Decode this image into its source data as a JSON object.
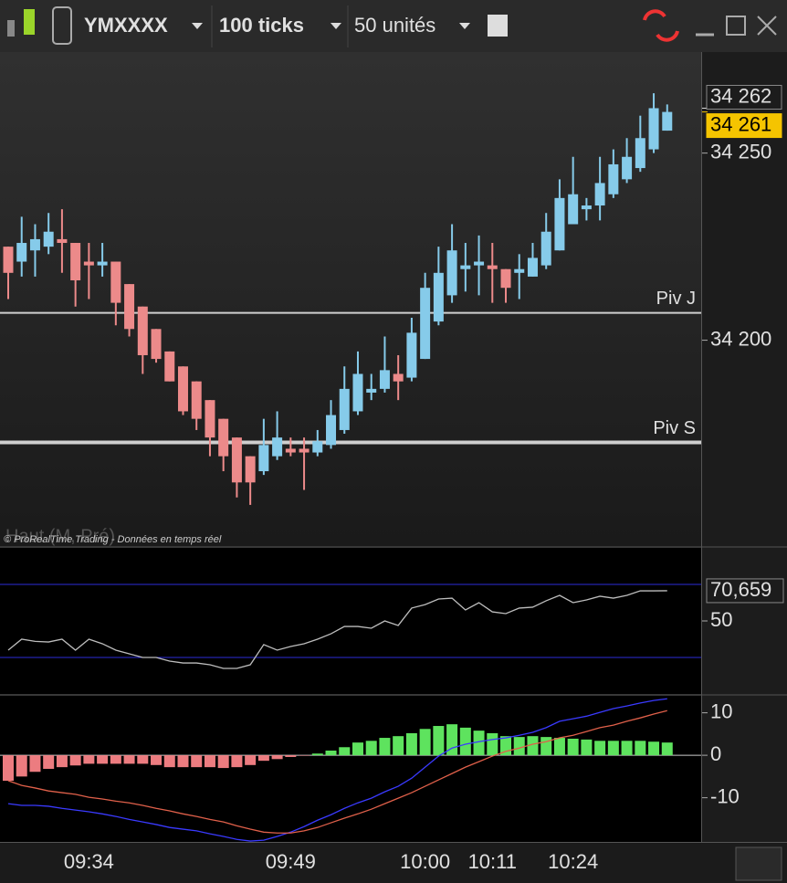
{
  "toolbar": {
    "symbol": "YMXXXX",
    "interval": "100 ticks",
    "units": "50 unités"
  },
  "chart_data": [
    {
      "type": "candlestick",
      "watermark": "© ProRealTime Trading - Données en temps réel",
      "indicator_label": "Haut (M, Pré)",
      "categories": [
        null,
        null,
        null,
        null,
        null,
        null,
        "09:34",
        null,
        null,
        null,
        null,
        null,
        null,
        null,
        null,
        null,
        null,
        null,
        null,
        null,
        null,
        "09:49",
        null,
        null,
        null,
        null,
        null,
        null,
        null,
        null,
        null,
        "10:00",
        null,
        null,
        null,
        null,
        "10:11",
        null,
        null,
        null,
        null,
        null,
        "10:24",
        null,
        null,
        null,
        null,
        null,
        null,
        null
      ],
      "open": [
        34225,
        34221,
        34224,
        34225,
        34227,
        34226,
        34221,
        34220,
        34221,
        34215,
        34209,
        34203,
        34197,
        34193,
        34189,
        34184,
        34179,
        34174,
        34169,
        34165,
        34169,
        34171,
        34171,
        34170,
        34172,
        34176,
        34181,
        34186,
        34187,
        34191,
        34190,
        34195,
        34205,
        34212,
        34219,
        34220,
        34220,
        34219,
        34218,
        34217,
        34220,
        34224,
        34231,
        34235,
        34236,
        34239,
        34243,
        34246,
        34251,
        34256
      ],
      "high": [
        34225,
        34233,
        34231,
        34234,
        34235,
        34226,
        34226,
        34226,
        34221,
        34215,
        34209,
        34203,
        34197,
        34193,
        34189,
        34184,
        34179,
        34174,
        34169,
        34179,
        34181,
        34174,
        34174,
        34176,
        34184,
        34193,
        34197,
        34191,
        34201,
        34196,
        34206,
        34218,
        34225,
        34231,
        34226,
        34228,
        34226,
        34219,
        34223,
        34226,
        34234,
        34243,
        34249,
        34238,
        34249,
        34251,
        34254,
        34260,
        34266,
        34263
      ],
      "low": [
        34211,
        34217,
        34217,
        34223,
        34218,
        34209,
        34211,
        34217,
        34204,
        34201,
        34191,
        34194,
        34189,
        34180,
        34176,
        34169,
        34165,
        34158,
        34156,
        34164,
        34168,
        34169,
        34160,
        34169,
        34171,
        34175,
        34180,
        34184,
        34186,
        34184,
        34189,
        34195,
        34204,
        34210,
        34213,
        34212,
        34210,
        34210,
        34211,
        34217,
        34219,
        34224,
        34231,
        34232,
        34232,
        34238,
        34242,
        34245,
        34250,
        34256
      ],
      "close": [
        34218,
        34226,
        34227,
        34229,
        34226,
        34216,
        34220,
        34221,
        34210,
        34203,
        34196,
        34195,
        34189,
        34181,
        34179,
        34174,
        34169,
        34162,
        34162,
        34172,
        34174,
        34170,
        34170,
        34173,
        34180,
        34187,
        34191,
        34187,
        34192,
        34189,
        34202,
        34214,
        34218,
        34224,
        34220,
        34221,
        34219,
        34214,
        34219,
        34222,
        34229,
        34238,
        34239,
        34236,
        34242,
        34247,
        34249,
        34254,
        34262,
        34261
      ],
      "up_color": "#86cbea",
      "down_color": "#ec8a8a",
      "ylim": [
        34145,
        34277
      ],
      "yticks": [
        {
          "value": 34200,
          "label": "34 200"
        },
        {
          "value": 34250,
          "label": "34 250"
        }
      ],
      "price_labels": [
        {
          "value": 34262,
          "label": "34 262"
        },
        {
          "value": 34261,
          "label": "34 261"
        }
      ],
      "lines": [
        {
          "name": "Piv J",
          "value": 34207.3
        },
        {
          "name": "Piv S",
          "value": 34172.7
        }
      ]
    },
    {
      "type": "line",
      "series": [
        {
          "color": "#bdbdbd",
          "values": [
            30,
            37.5,
            36,
            35.6,
            37.5,
            30,
            37.5,
            34.4,
            30,
            27.5,
            25,
            25,
            22.5,
            21.2,
            21.2,
            20,
            17.5,
            17.5,
            20,
            33.8,
            30,
            32.5,
            34.4,
            37.5,
            41.2,
            46.2,
            46.2,
            45,
            50,
            46.9,
            58.8,
            61.2,
            65,
            65.6,
            57.5,
            62.5,
            56.2,
            55,
            58.8,
            59.4,
            63.8,
            67.5,
            62.5,
            64.4,
            66.9,
            65.6,
            67.5,
            70.6,
            70.6,
            70.659
          ]
        }
      ],
      "last_value_label": "70,659",
      "ylim": [
        0,
        100
      ],
      "yticks": [
        50
      ],
      "levels": [
        75,
        25
      ],
      "level_color": "#2b2bd9"
    },
    {
      "type": "macd",
      "values": [
        -6,
        -5,
        -3.9,
        -3.2,
        -2.8,
        -2.4,
        -2,
        -2,
        -2,
        -2,
        -2,
        -2.3,
        -2.8,
        -2.8,
        -2.8,
        -2.8,
        -3,
        -2.8,
        -2.3,
        -1.3,
        -0.9,
        -0.4,
        -0.1,
        0.4,
        1.1,
        1.9,
        3,
        3.4,
        4.1,
        4.5,
        5.2,
        6.2,
        6.9,
        7.3,
        6.5,
        5.8,
        5.2,
        4.5,
        4.3,
        4.5,
        4.3,
        4.1,
        3.9,
        3.7,
        3.4,
        3.4,
        3.4,
        3.4,
        3.2,
        3
      ],
      "pos_color": "#5ee35e",
      "neg_color": "#ec7c80",
      "series": [
        {
          "color": "#3a3aff",
          "values": [
            -11.4,
            -11.8,
            -11.8,
            -12,
            -12.5,
            -12.9,
            -13.3,
            -13.8,
            -14.4,
            -15.1,
            -15.7,
            -16.3,
            -17,
            -17.4,
            -17.8,
            -18.5,
            -19.1,
            -19.8,
            -20.2,
            -20,
            -19.1,
            -18.1,
            -16.8,
            -15.3,
            -14,
            -12.5,
            -11.2,
            -10.1,
            -8.6,
            -7.3,
            -5.4,
            -2.8,
            -0.2,
            1.7,
            2.6,
            3.2,
            3.7,
            4.1,
            4.7,
            5.4,
            6.5,
            8,
            8.6,
            9.2,
            10.1,
            11,
            11.6,
            12.3,
            12.9,
            13.3
          ]
        },
        {
          "color": "#e0604a",
          "values": [
            -6,
            -7.1,
            -7.7,
            -8.4,
            -8.8,
            -9.2,
            -9.9,
            -10.3,
            -10.8,
            -11.2,
            -11.8,
            -12.5,
            -13.1,
            -13.8,
            -14.4,
            -15.1,
            -15.7,
            -16.6,
            -17.4,
            -18.1,
            -18.3,
            -18.3,
            -17.8,
            -17,
            -15.9,
            -14.8,
            -13.8,
            -12.7,
            -11.4,
            -10.1,
            -8.8,
            -7.3,
            -5.8,
            -4.3,
            -2.8,
            -1.5,
            -0.2,
            0.9,
            1.7,
            2.6,
            3.2,
            4.1,
            4.7,
            5.6,
            6.5,
            7.1,
            8,
            8.8,
            9.7,
            10.5
          ]
        }
      ],
      "ylim": [
        -20.4,
        14
      ],
      "yticks": [
        10,
        0,
        -10
      ]
    }
  ]
}
